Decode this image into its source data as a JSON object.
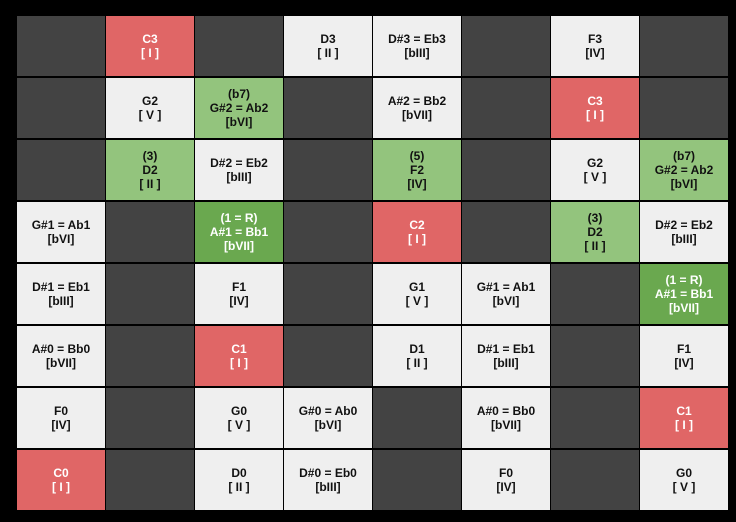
{
  "grid": {
    "rows": [
      [
        {
          "color": "#434343"
        },
        {
          "color": "#e06666",
          "lines": [
            "C3",
            "[ I ]"
          ]
        },
        {
          "color": "#434343"
        },
        {
          "color": "#efefef",
          "lines": [
            "D3",
            "[ II ]"
          ]
        },
        {
          "color": "#efefef",
          "lines": [
            "D#3 = Eb3",
            "[bIII]"
          ]
        },
        {
          "color": "#434343"
        },
        {
          "color": "#efefef",
          "lines": [
            "F3",
            "[IV]"
          ]
        },
        {
          "color": "#434343"
        }
      ],
      [
        {
          "color": "#434343"
        },
        {
          "color": "#efefef",
          "lines": [
            "G2",
            "[ V ]"
          ]
        },
        {
          "color": "#93c47d",
          "lines": [
            "(b7)",
            "G#2 = Ab2",
            "[bVI]"
          ]
        },
        {
          "color": "#434343"
        },
        {
          "color": "#efefef",
          "lines": [
            "A#2 = Bb2",
            "[bVII]"
          ]
        },
        {
          "color": "#434343"
        },
        {
          "color": "#e06666",
          "lines": [
            "C3",
            "[ I ]"
          ]
        },
        {
          "color": "#434343"
        }
      ],
      [
        {
          "color": "#434343"
        },
        {
          "color": "#93c47d",
          "lines": [
            "(3)",
            "D2",
            "[ II ]"
          ]
        },
        {
          "color": "#efefef",
          "lines": [
            "D#2 = Eb2",
            "[bIII]"
          ]
        },
        {
          "color": "#434343"
        },
        {
          "color": "#93c47d",
          "lines": [
            "(5)",
            "F2",
            "[IV]"
          ]
        },
        {
          "color": "#434343"
        },
        {
          "color": "#efefef",
          "lines": [
            "G2",
            "[ V ]"
          ]
        },
        {
          "color": "#93c47d",
          "lines": [
            "(b7)",
            "G#2 = Ab2",
            "[bVI]"
          ]
        }
      ],
      [
        {
          "color": "#efefef",
          "lines": [
            "G#1 = Ab1",
            "[bVI]"
          ]
        },
        {
          "color": "#434343"
        },
        {
          "color": "#6aa84f",
          "lines": [
            "(1 = R)",
            "A#1 = Bb1",
            "[bVII]"
          ]
        },
        {
          "color": "#434343"
        },
        {
          "color": "#e06666",
          "lines": [
            "C2",
            "[ I ]"
          ]
        },
        {
          "color": "#434343"
        },
        {
          "color": "#93c47d",
          "lines": [
            "(3)",
            "D2",
            "[ II ]"
          ]
        },
        {
          "color": "#efefef",
          "lines": [
            "D#2 = Eb2",
            "[bIII]"
          ]
        }
      ],
      [
        {
          "color": "#efefef",
          "lines": [
            "D#1 = Eb1",
            "[bIII]"
          ]
        },
        {
          "color": "#434343"
        },
        {
          "color": "#efefef",
          "lines": [
            "F1",
            "[IV]"
          ]
        },
        {
          "color": "#434343"
        },
        {
          "color": "#efefef",
          "lines": [
            "G1",
            "[ V ]"
          ]
        },
        {
          "color": "#efefef",
          "lines": [
            "G#1 = Ab1",
            "[bVI]"
          ]
        },
        {
          "color": "#434343"
        },
        {
          "color": "#6aa84f",
          "lines": [
            "(1 = R)",
            "A#1 = Bb1",
            "[bVII]"
          ]
        }
      ],
      [
        {
          "color": "#efefef",
          "lines": [
            "A#0 = Bb0",
            "[bVII]"
          ]
        },
        {
          "color": "#434343"
        },
        {
          "color": "#e06666",
          "lines": [
            "C1",
            "[ I ]"
          ]
        },
        {
          "color": "#434343"
        },
        {
          "color": "#efefef",
          "lines": [
            "D1",
            "[ II ]"
          ]
        },
        {
          "color": "#efefef",
          "lines": [
            "D#1 = Eb1",
            "[bIII]"
          ]
        },
        {
          "color": "#434343"
        },
        {
          "color": "#efefef",
          "lines": [
            "F1",
            "[IV]"
          ]
        }
      ],
      [
        {
          "color": "#efefef",
          "lines": [
            "F0",
            "[IV]"
          ]
        },
        {
          "color": "#434343"
        },
        {
          "color": "#efefef",
          "lines": [
            "G0",
            "[ V ]"
          ]
        },
        {
          "color": "#efefef",
          "lines": [
            "G#0 = Ab0",
            "[bVI]"
          ]
        },
        {
          "color": "#434343"
        },
        {
          "color": "#efefef",
          "lines": [
            "A#0 = Bb0",
            "[bVII]"
          ]
        },
        {
          "color": "#434343"
        },
        {
          "color": "#e06666",
          "lines": [
            "C1",
            "[ I ]"
          ]
        }
      ],
      [
        {
          "color": "#e06666",
          "lines": [
            "C0",
            "[ I ]"
          ]
        },
        {
          "color": "#434343"
        },
        {
          "color": "#efefef",
          "lines": [
            "D0",
            "[ II ]"
          ]
        },
        {
          "color": "#efefef",
          "lines": [
            "D#0 = Eb0",
            "[bIII]"
          ]
        },
        {
          "color": "#434343"
        },
        {
          "color": "#efefef",
          "lines": [
            "F0",
            "[IV]"
          ]
        },
        {
          "color": "#434343"
        },
        {
          "color": "#efefef",
          "lines": [
            "G0",
            "[ V ]"
          ]
        }
      ]
    ]
  }
}
